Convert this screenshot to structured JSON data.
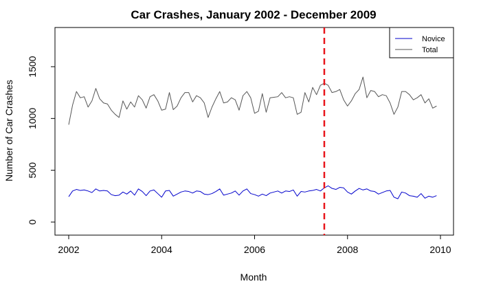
{
  "chart_data": {
    "type": "line",
    "title": "Car Crashes, January 2002 - December 2009",
    "xlabel": "Month",
    "ylabel": "Number of Car Crashes",
    "xlim": [
      2002,
      2010
    ],
    "ylim": [
      0,
      1800
    ],
    "x_ticks": [
      "2002",
      "2004",
      "2006",
      "2008",
      "2010"
    ],
    "y_ticks": [
      "0",
      "500",
      "1000",
      "1500"
    ],
    "x_start": 2002.0,
    "x_step": 0.08333,
    "legend_position": "top-right",
    "vline": {
      "x": 2007.5,
      "color": "#e8161c",
      "style": "dashed"
    },
    "series": [
      {
        "name": "Novice",
        "color": "#0000cc",
        "values": [
          245,
          300,
          315,
          305,
          310,
          300,
          285,
          320,
          300,
          305,
          300,
          265,
          255,
          260,
          290,
          270,
          300,
          260,
          320,
          295,
          255,
          300,
          310,
          275,
          240,
          300,
          305,
          250,
          270,
          290,
          300,
          295,
          280,
          300,
          295,
          270,
          265,
          275,
          295,
          320,
          260,
          270,
          280,
          300,
          260,
          300,
          320,
          275,
          265,
          250,
          270,
          255,
          280,
          290,
          300,
          280,
          300,
          295,
          310,
          250,
          295,
          290,
          300,
          305,
          315,
          300,
          330,
          350,
          325,
          315,
          335,
          330,
          290,
          270,
          300,
          325,
          310,
          320,
          300,
          295,
          270,
          285,
          300,
          305,
          240,
          225,
          290,
          280,
          255,
          250,
          240,
          275,
          230,
          250,
          240,
          255
        ]
      },
      {
        "name": "Total",
        "color": "#555555",
        "values": [
          940,
          1130,
          1260,
          1200,
          1210,
          1110,
          1170,
          1290,
          1190,
          1150,
          1140,
          1080,
          1040,
          1010,
          1170,
          1090,
          1160,
          1110,
          1220,
          1180,
          1100,
          1210,
          1230,
          1170,
          1080,
          1090,
          1250,
          1085,
          1120,
          1200,
          1250,
          1250,
          1160,
          1220,
          1200,
          1150,
          1010,
          1110,
          1190,
          1260,
          1150,
          1160,
          1200,
          1180,
          1080,
          1220,
          1260,
          1200,
          1050,
          1070,
          1240,
          1060,
          1200,
          1205,
          1210,
          1250,
          1200,
          1210,
          1200,
          1040,
          1060,
          1250,
          1160,
          1300,
          1230,
          1320,
          1340,
          1320,
          1250,
          1260,
          1280,
          1180,
          1120,
          1170,
          1240,
          1280,
          1400,
          1200,
          1270,
          1260,
          1210,
          1230,
          1220,
          1150,
          1040,
          1110,
          1260,
          1260,
          1230,
          1180,
          1200,
          1230,
          1150,
          1190,
          1100,
          1120
        ]
      }
    ]
  }
}
